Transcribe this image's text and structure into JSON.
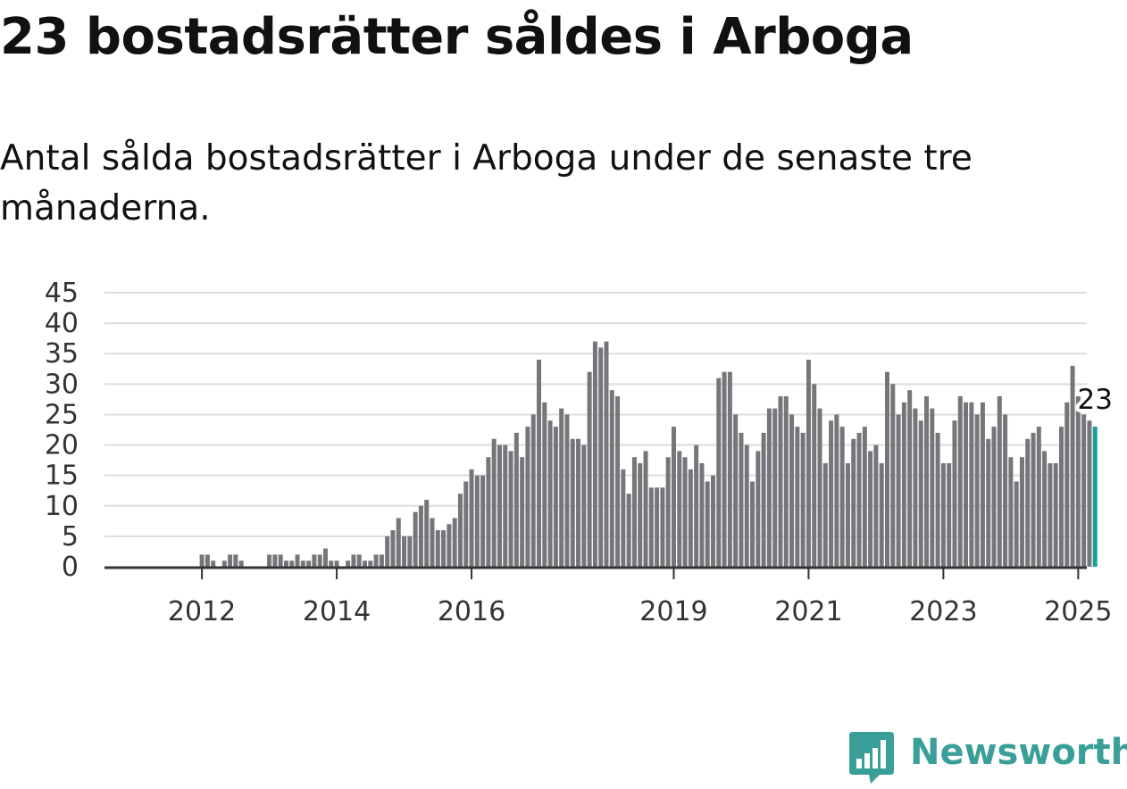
{
  "title": "23 bostadsrätter såldes i Arboga",
  "subtitle": "Antal sålda bostadsrätter i Arboga under de senaste tre månaderna.",
  "brand": {
    "name": "Newsworthy",
    "logo_icon": "bar-chart-speech-bubble-icon",
    "color": "#3a9f98"
  },
  "colors": {
    "bar": "#76757a",
    "highlight": "#13a29a",
    "grid": "#dddddd",
    "axis": "#333333"
  },
  "chart_data": {
    "type": "bar",
    "title": "",
    "xlabel": "",
    "ylabel": "",
    "ylim": [
      0,
      45
    ],
    "y_ticks": [
      "0",
      "5",
      "10",
      "15",
      "20",
      "25",
      "30",
      "35",
      "40",
      "45"
    ],
    "x_ticks": [
      "2012",
      "2014",
      "2016",
      "2019",
      "2021",
      "2023",
      "2025"
    ],
    "grid": "horizontal",
    "legend": "none",
    "start_month": "2011-04",
    "end_month": "2025-02",
    "values": [
      0,
      0,
      0,
      0,
      0,
      0,
      0,
      0,
      0,
      2,
      2,
      1,
      0,
      1,
      2,
      2,
      1,
      0,
      0,
      0,
      0,
      2,
      2,
      2,
      1,
      1,
      2,
      1,
      1,
      2,
      2,
      3,
      1,
      1,
      0,
      1,
      2,
      2,
      1,
      1,
      2,
      2,
      5,
      6,
      8,
      5,
      5,
      9,
      10,
      11,
      8,
      6,
      6,
      7,
      8,
      12,
      14,
      16,
      15,
      15,
      18,
      21,
      20,
      20,
      19,
      22,
      18,
      23,
      25,
      34,
      27,
      24,
      23,
      26,
      25,
      21,
      21,
      20,
      32,
      37,
      36,
      37,
      29,
      28,
      16,
      12,
      18,
      17,
      19,
      13,
      13,
      13,
      18,
      23,
      19,
      18,
      16,
      20,
      17,
      14,
      15,
      31,
      32,
      32,
      25,
      22,
      20,
      14,
      19,
      22,
      26,
      26,
      28,
      28,
      25,
      23,
      22,
      34,
      30,
      26,
      17,
      24,
      25,
      23,
      17,
      21,
      22,
      23,
      19,
      20,
      17,
      32,
      30,
      25,
      27,
      29,
      26,
      24,
      28,
      26,
      22,
      17,
      17,
      24,
      28,
      27,
      27,
      25,
      27,
      21,
      23,
      28,
      25,
      18,
      14,
      18,
      21,
      22,
      23,
      19,
      17,
      17,
      23,
      27,
      33,
      28,
      25,
      24,
      23
    ],
    "highlight": {
      "label": "23",
      "value": 23,
      "month": "2025-02"
    }
  }
}
